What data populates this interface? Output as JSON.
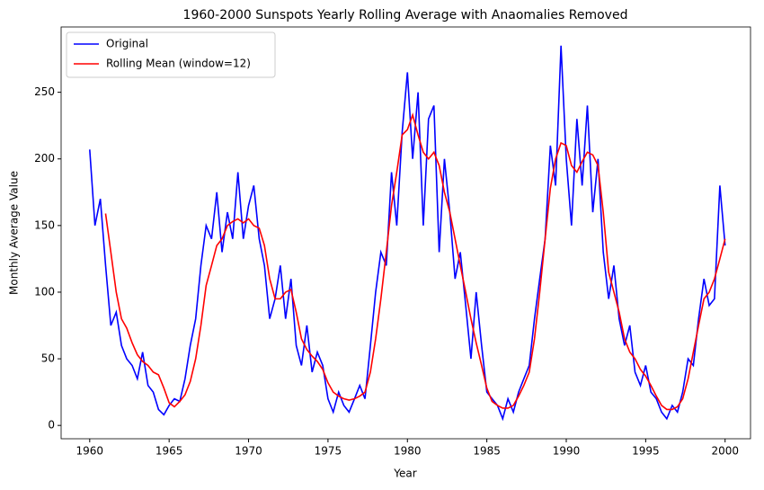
{
  "chart_data": {
    "type": "line",
    "title": "1960-2000 Sunspots Yearly Rolling Average with Anaomalies Removed",
    "xlabel": "Year",
    "ylabel": "Monthly Average Value",
    "x": [
      1960,
      1960.33,
      1960.67,
      1961,
      1961.33,
      1961.67,
      1962,
      1962.33,
      1962.67,
      1963,
      1963.33,
      1963.67,
      1964,
      1964.33,
      1964.67,
      1965,
      1965.33,
      1965.67,
      1966,
      1966.33,
      1966.67,
      1967,
      1967.33,
      1967.67,
      1968,
      1968.33,
      1968.67,
      1969,
      1969.33,
      1969.67,
      1970,
      1970.33,
      1970.67,
      1971,
      1971.33,
      1971.67,
      1972,
      1972.33,
      1972.67,
      1973,
      1973.33,
      1973.67,
      1974,
      1974.33,
      1974.67,
      1975,
      1975.33,
      1975.67,
      1976,
      1976.33,
      1976.67,
      1977,
      1977.33,
      1977.67,
      1978,
      1978.33,
      1978.67,
      1979,
      1979.33,
      1979.67,
      1980,
      1980.33,
      1980.67,
      1981,
      1981.33,
      1981.67,
      1982,
      1982.33,
      1982.67,
      1983,
      1983.33,
      1983.67,
      1984,
      1984.33,
      1984.67,
      1985,
      1985.33,
      1985.67,
      1986,
      1986.33,
      1986.67,
      1987,
      1987.33,
      1987.67,
      1988,
      1988.33,
      1988.67,
      1989,
      1989.33,
      1989.67,
      1990,
      1990.33,
      1990.67,
      1991,
      1991.33,
      1991.67,
      1992,
      1992.33,
      1992.67,
      1993,
      1993.33,
      1993.67,
      1994,
      1994.33,
      1994.67,
      1995,
      1995.33,
      1995.67,
      1996,
      1996.33,
      1996.67,
      1997,
      1997.33,
      1997.67,
      1998,
      1998.33,
      1998.67,
      1999,
      1999.33,
      1999.67,
      2000
    ],
    "series": [
      {
        "name": "Original",
        "color": "#0000ff",
        "values": [
          207,
          150,
          170,
          120,
          75,
          85,
          60,
          50,
          45,
          35,
          55,
          30,
          25,
          12,
          8,
          15,
          20,
          18,
          35,
          60,
          80,
          120,
          150,
          140,
          175,
          130,
          160,
          140,
          190,
          140,
          165,
          180,
          140,
          120,
          80,
          95,
          120,
          80,
          110,
          60,
          45,
          75,
          40,
          55,
          45,
          20,
          10,
          25,
          15,
          10,
          20,
          30,
          20,
          60,
          100,
          130,
          120,
          190,
          150,
          220,
          265,
          200,
          250,
          150,
          230,
          240,
          130,
          200,
          160,
          110,
          130,
          90,
          50,
          100,
          60,
          25,
          20,
          15,
          5,
          20,
          10,
          25,
          35,
          45,
          80,
          110,
          140,
          210,
          180,
          285,
          200,
          150,
          230,
          180,
          240,
          160,
          200,
          130,
          95,
          120,
          80,
          60,
          75,
          40,
          30,
          45,
          25,
          20,
          10,
          5,
          15,
          10,
          25,
          50,
          45,
          80,
          110,
          90,
          95,
          180,
          135
        ]
      },
      {
        "name": "Rolling Mean (window=12)",
        "color": "#ff0000",
        "values": [
          null,
          null,
          null,
          159,
          130,
          100,
          80,
          73,
          62,
          53,
          48,
          45,
          40,
          38,
          28,
          17,
          14,
          18,
          23,
          33,
          50,
          75,
          105,
          120,
          135,
          140,
          150,
          153,
          155,
          152,
          155,
          150,
          148,
          135,
          110,
          95,
          95,
          100,
          102,
          85,
          65,
          57,
          52,
          48,
          42,
          32,
          25,
          22,
          20,
          19,
          20,
          22,
          25,
          40,
          65,
          95,
          130,
          165,
          190,
          218,
          222,
          233,
          218,
          205,
          200,
          205,
          195,
          175,
          160,
          140,
          120,
          100,
          80,
          62,
          45,
          28,
          18,
          15,
          13,
          13,
          15,
          22,
          30,
          40,
          65,
          100,
          140,
          178,
          200,
          212,
          210,
          195,
          190,
          198,
          205,
          203,
          195,
          160,
          115,
          100,
          85,
          65,
          55,
          50,
          42,
          37,
          30,
          22,
          15,
          12,
          12,
          14,
          20,
          35,
          55,
          75,
          95,
          100,
          110,
          125,
          140
        ]
      }
    ],
    "xlim": [
      1958.2,
      2001.6
    ],
    "ylim": [
      -10,
      299
    ],
    "xticks": [
      1960,
      1965,
      1970,
      1975,
      1980,
      1985,
      1990,
      1995,
      2000
    ],
    "yticks": [
      0,
      50,
      100,
      150,
      200,
      250
    ],
    "legend": "upper left"
  }
}
